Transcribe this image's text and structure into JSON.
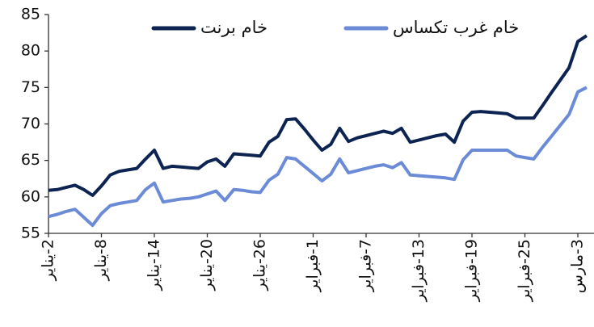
{
  "chart_data": {
    "type": "line",
    "categories": [
      "2-يناير",
      null,
      null,
      null,
      null,
      null,
      "8-يناير",
      null,
      null,
      null,
      null,
      null,
      "14-يناير",
      null,
      null,
      null,
      null,
      null,
      "20-يناير",
      null,
      null,
      null,
      null,
      null,
      "26-يناير",
      null,
      null,
      null,
      null,
      null,
      "1-فبراير",
      null,
      null,
      null,
      null,
      null,
      "7-فبراير",
      null,
      null,
      null,
      null,
      null,
      "13-فبراير",
      null,
      null,
      null,
      null,
      null,
      "19-فبراير",
      null,
      null,
      null,
      null,
      null,
      "25-فبراير",
      null,
      null,
      null,
      null,
      null,
      "3-مارس",
      null
    ],
    "series": [
      {
        "name": "خام برنت",
        "color": "#0d2452",
        "values": [
          60.9,
          61,
          61.3,
          61.6,
          61.0,
          60.2,
          61.5,
          63.0,
          63.5,
          63.7,
          63.9,
          65.2,
          66.4,
          63.9,
          64.2,
          64.1,
          64.0,
          63.9,
          64.8,
          65.2,
          64.2,
          65.9,
          65.8,
          65.7,
          65.6,
          67.5,
          68.3,
          70.6,
          70.7,
          69.3,
          67.8,
          66.4,
          67.2,
          69.4,
          67.6,
          68.1,
          68.4,
          68.7,
          69.0,
          68.7,
          69.4,
          67.5,
          67.8,
          68.1,
          68.4,
          68.6,
          67.5,
          70.4,
          71.6,
          71.7,
          71.6,
          71.5,
          71.4,
          70.8,
          70.8,
          70.8,
          72.5,
          74.3,
          76.0,
          77.7,
          81.3,
          82.1
        ]
      },
      {
        "name": "خام غرب  تكساس",
        "color": "#6b8bd6",
        "values": [
          57.3,
          57.6,
          58.0,
          58.3,
          57.2,
          56.1,
          57.7,
          58.8,
          59.1,
          59.3,
          59.5,
          61.0,
          61.9,
          59.3,
          59.5,
          59.7,
          59.8,
          60.0,
          60.4,
          60.8,
          59.5,
          61.0,
          60.9,
          60.7,
          60.6,
          62.3,
          63.1,
          65.4,
          65.2,
          64.2,
          63.2,
          62.2,
          63.1,
          65.2,
          63.3,
          63.6,
          63.9,
          64.2,
          64.4,
          64.0,
          64.7,
          63.0,
          62.9,
          62.8,
          62.7,
          62.6,
          62.4,
          65.1,
          66.4,
          66.4,
          66.4,
          66.4,
          66.4,
          65.6,
          65.4,
          65.2,
          66.8,
          68.3,
          69.8,
          71.3,
          74.4,
          75.0
        ]
      }
    ],
    "ylim": [
      55,
      85
    ],
    "yticks": [
      55,
      60,
      65,
      70,
      75,
      80,
      85
    ]
  }
}
